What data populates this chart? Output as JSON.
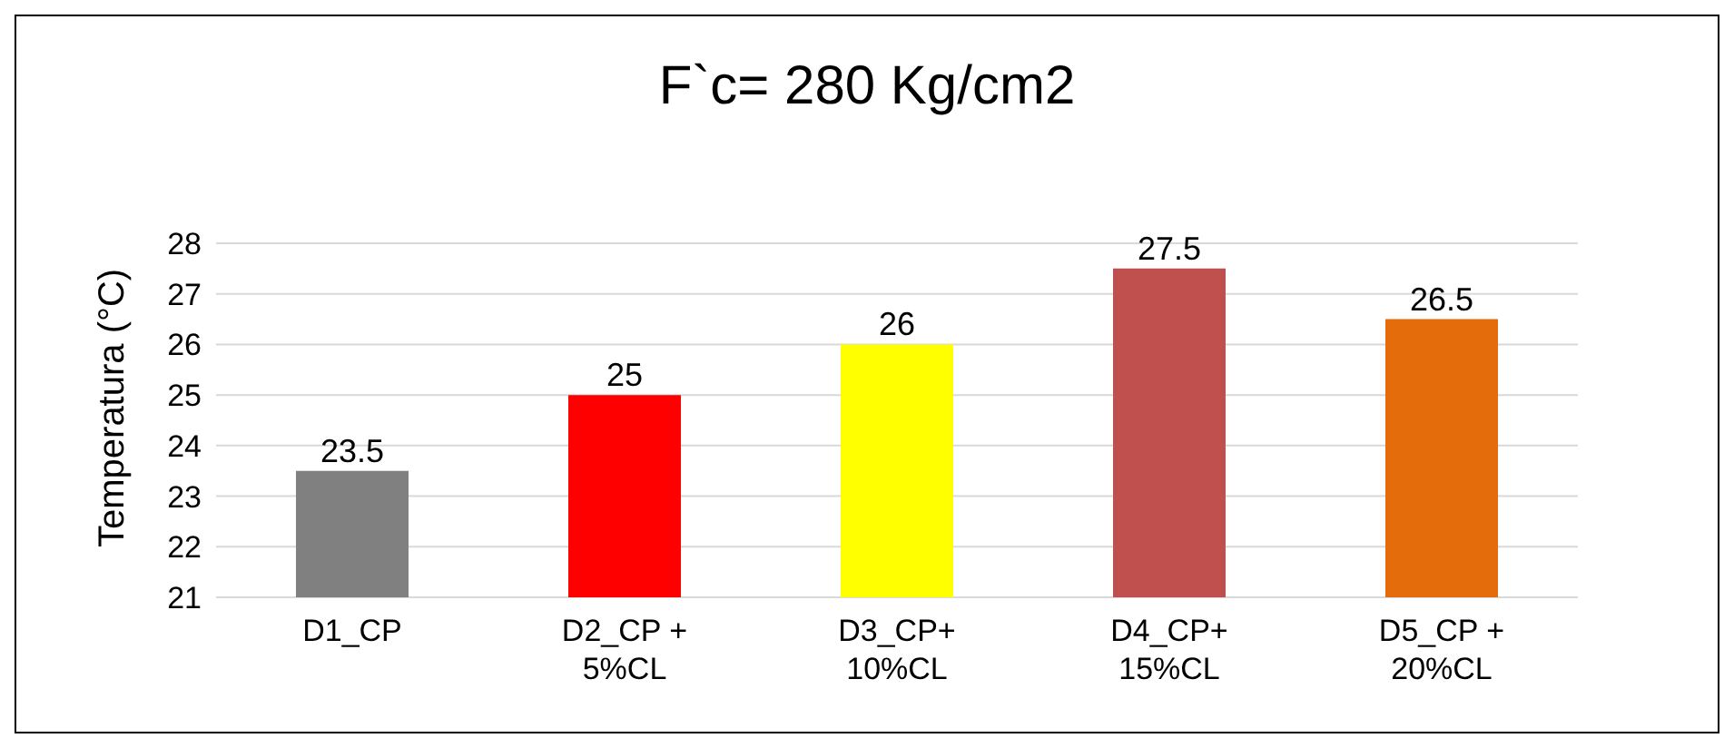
{
  "chart_data": {
    "type": "bar",
    "title": "F`c= 280 Kg/cm2",
    "ylabel": "Temperatura (°C)",
    "categories": [
      "D1_CP",
      "D2_CP + 5%CL",
      "D3_CP+ 10%CL",
      "D4_CP+ 15%CL",
      "D5_CP + 20%CL"
    ],
    "values": [
      23.5,
      25,
      26,
      27.5,
      26.5
    ],
    "colors": [
      "#808080",
      "#ff0000",
      "#ffff00",
      "#c0504d",
      "#e46c0a"
    ],
    "ylim": [
      21,
      28
    ],
    "yticks": [
      21,
      22,
      23,
      24,
      25,
      26,
      27,
      28
    ],
    "grid": "y",
    "data_labels": true
  }
}
